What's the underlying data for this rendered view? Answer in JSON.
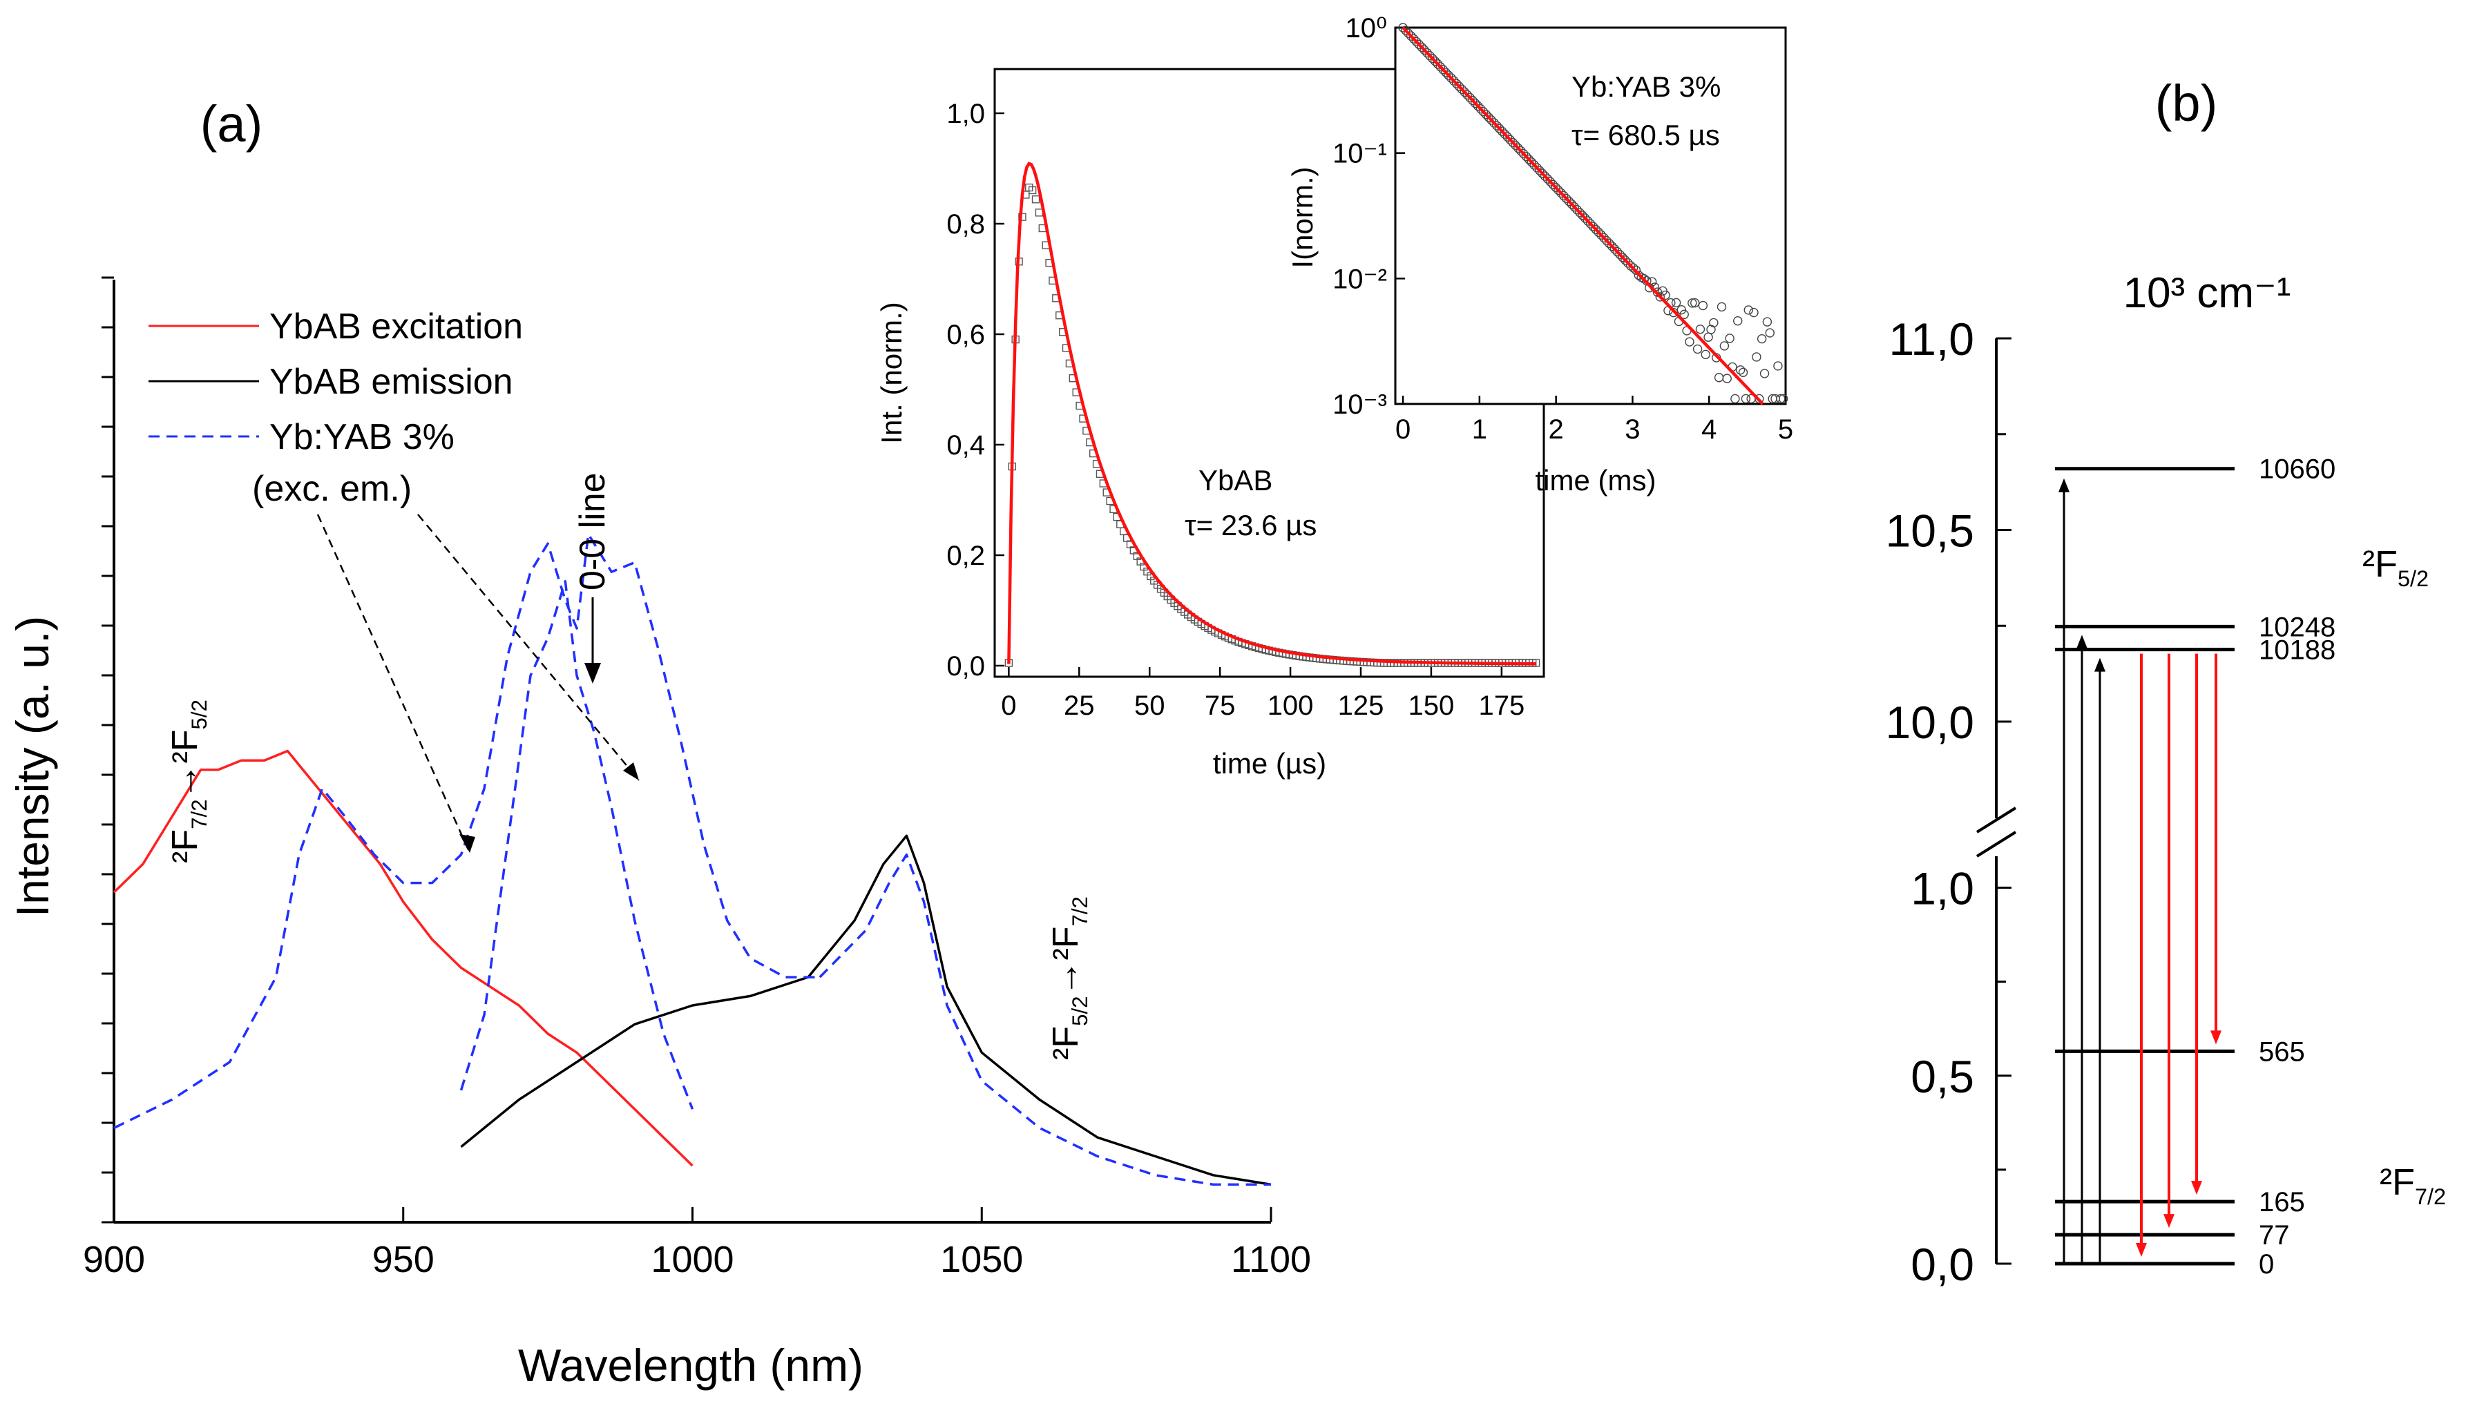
{
  "panel_a": {
    "label": "(a)",
    "annotations": {
      "zero_line": "0-0 line",
      "exc_em": "(exc. em.)",
      "transition_left_html": "<tspan>²F</tspan><tspan font-size='60%' dy='14'>7/2</tspan><tspan dy='-14'>→²F</tspan><tspan font-size='60%' dy='14'>5/2</tspan>",
      "transition_right_html": "<tspan>²F</tspan><tspan font-size='60%' dy='14'>5/2</tspan><tspan dy='-14'>→²F</tspan><tspan font-size='60%' dy='14'>7/2</tspan>"
    }
  },
  "panel_b": {
    "label": "(b)",
    "unit_label": "10³ cm⁻¹",
    "upper_manifold_html": "<tspan>²F</tspan><tspan font-size='60%' dy='14'>5/2</tspan>",
    "lower_manifold_html": "<tspan>²F</tspan><tspan font-size='60%' dy='14'>7/2</tspan>"
  },
  "chart_data": [
    {
      "type": "line",
      "name": "main spectra",
      "xlabel": "Wavelength (nm)",
      "ylabel": "Intensity (a. u.)",
      "xlim": [
        900,
        1100
      ],
      "ylim": [
        0,
        1.0
      ],
      "xticks": [
        900,
        950,
        1000,
        1050,
        1100
      ],
      "legend": "top-left",
      "series": [
        {
          "name": "YbAB excitation",
          "color": "#ff2020",
          "dash": "solid",
          "x": [
            900,
            905,
            910,
            915,
            918,
            922,
            926,
            930,
            934,
            938,
            942,
            946,
            950,
            955,
            960,
            965,
            970,
            975,
            980,
            985,
            990,
            995,
            1000
          ],
          "y": [
            0.35,
            0.38,
            0.43,
            0.48,
            0.48,
            0.49,
            0.49,
            0.5,
            0.47,
            0.44,
            0.41,
            0.38,
            0.34,
            0.3,
            0.27,
            0.25,
            0.23,
            0.2,
            0.18,
            0.15,
            0.12,
            0.09,
            0.06
          ]
        },
        {
          "name": "YbAB emission",
          "color": "#000000",
          "dash": "solid",
          "x": [
            960,
            970,
            980,
            990,
            1000,
            1010,
            1020,
            1028,
            1033,
            1037,
            1040,
            1044,
            1050,
            1060,
            1070,
            1080,
            1090,
            1100
          ],
          "y": [
            0.08,
            0.13,
            0.17,
            0.21,
            0.23,
            0.24,
            0.26,
            0.32,
            0.38,
            0.41,
            0.36,
            0.25,
            0.18,
            0.13,
            0.09,
            0.07,
            0.05,
            0.04
          ]
        },
        {
          "name": "Yb:YAB 3%",
          "color": "#2030ff",
          "dash": "dashed",
          "x": [
            900,
            910,
            920,
            928,
            932,
            936,
            940,
            945,
            950,
            955,
            960,
            964,
            968,
            972,
            975,
            978,
            980,
            982,
            986,
            990,
            994,
            998,
            1002,
            1006,
            1010,
            1016,
            1022
          ],
          "y": [
            0.1,
            0.13,
            0.17,
            0.26,
            0.39,
            0.46,
            0.43,
            0.39,
            0.36,
            0.36,
            0.39,
            0.46,
            0.6,
            0.69,
            0.72,
            0.66,
            0.63,
            0.73,
            0.69,
            0.7,
            0.61,
            0.51,
            0.4,
            0.32,
            0.28,
            0.26,
            0.26
          ]
        },
        {
          "name": "",
          "color": "#2030ff",
          "dash": "dashed",
          "x": [
            960,
            964,
            968,
            972,
            975,
            978,
            980,
            983,
            986,
            990,
            995,
            1000
          ],
          "y": [
            0.14,
            0.22,
            0.4,
            0.58,
            0.62,
            0.68,
            0.58,
            0.52,
            0.44,
            0.32,
            0.2,
            0.12
          ]
        },
        {
          "name": "",
          "color": "#2030ff",
          "dash": "dashed",
          "x": [
            1022,
            1030,
            1034,
            1037,
            1040,
            1044,
            1050,
            1060,
            1070,
            1080,
            1090,
            1100
          ],
          "y": [
            0.26,
            0.31,
            0.36,
            0.39,
            0.34,
            0.23,
            0.15,
            0.1,
            0.07,
            0.05,
            0.04,
            0.04
          ]
        }
      ]
    },
    {
      "type": "line",
      "name": "inset 1",
      "xlabel": "time (µs)",
      "ylabel": "Int. (norm.)",
      "xlim": [
        -5,
        190
      ],
      "ylim": [
        -0.02,
        1.08
      ],
      "xticks": [
        0,
        25,
        50,
        75,
        100,
        125,
        150,
        175
      ],
      "yticks": [
        0.0,
        0.2,
        0.4,
        0.6,
        0.8,
        1.0
      ],
      "ytick_labels": [
        "0,0",
        "0,2",
        "0,4",
        "0,6",
        "0,8",
        "1,0"
      ],
      "annotation": {
        "line1": "YbAB",
        "line2": "τ= 23.6 µs"
      },
      "tau_us": 23.6
    },
    {
      "type": "line",
      "name": "inset 2",
      "xlabel": "time (ms)",
      "ylabel": "I(norm.)",
      "xlim": [
        -0.1,
        5
      ],
      "ylim": [
        0.001,
        1
      ],
      "yscale": "log",
      "xticks": [
        0,
        1,
        2,
        3,
        4,
        5
      ],
      "ytick_labels": [
        "10⁰",
        "10⁻¹",
        "10⁻²",
        "10⁻³"
      ],
      "annotation": {
        "line1": "Yb:YAB 3%",
        "line2": "τ= 680.5 µs"
      },
      "tau_ms": 0.6805
    },
    {
      "type": "diagram",
      "name": "energy levels",
      "ytick_labels": [
        "11,0",
        "10,5",
        "10,0",
        "1,0",
        "0,5",
        "0,0"
      ],
      "levels_cm1": [
        10660,
        10248,
        10188,
        565,
        165,
        77,
        0
      ],
      "level_labels": [
        "10660",
        "10248",
        "10188",
        "565",
        "165",
        "77",
        "0"
      ]
    }
  ]
}
